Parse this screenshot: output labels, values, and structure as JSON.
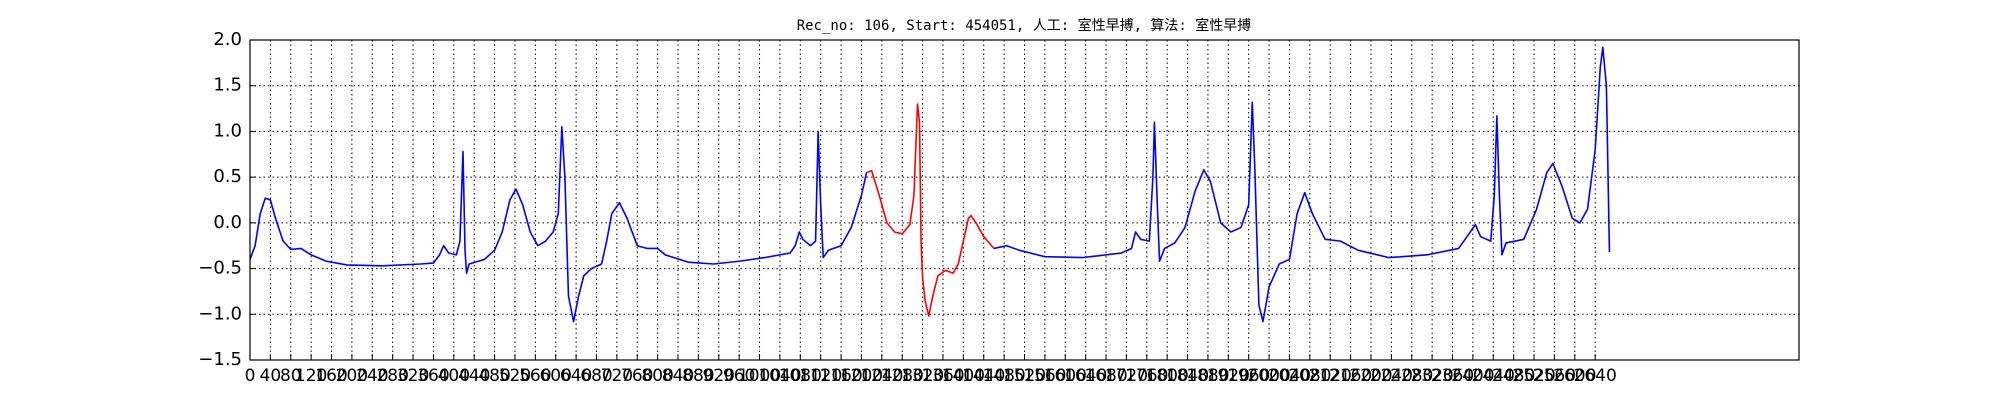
{
  "chart_data": {
    "type": "line",
    "title": "Rec_no: 106, Start: 454051, 人工: 室性早搏, 算法: 室性早搏",
    "xlim": [
      0,
      3040
    ],
    "xticks": [
      0,
      40,
      80,
      120,
      160,
      200,
      240,
      280,
      320,
      360,
      400,
      440,
      480,
      520,
      560,
      600,
      640,
      680,
      720,
      760,
      800,
      840,
      880,
      920,
      960,
      1000,
      1040,
      1080,
      1120,
      1160,
      1200,
      1240,
      1280,
      1320,
      1360,
      1400,
      1440,
      1480,
      1520,
      1560,
      1600,
      1640,
      1680,
      1720,
      1760,
      1800,
      1840,
      1880,
      1920,
      1960,
      2000,
      2040,
      2080,
      2120,
      2160,
      2200,
      2240,
      2280,
      2320,
      2360,
      2400,
      2440,
      2480,
      2520,
      2560,
      2600,
      2640
    ],
    "ylim": [
      -1.5,
      2.0
    ],
    "yticks": [
      {
        "value": -1.5,
        "label": "−1.5"
      },
      {
        "value": -1.0,
        "label": "−1.0"
      },
      {
        "value": -0.5,
        "label": "−0.5"
      },
      {
        "value": 0,
        "label": "0.0"
      },
      0.5,
      {
        "value": 1.0,
        "label": "1.0"
      },
      1.5,
      {
        "value": 2.0,
        "label": "2.0"
      }
    ],
    "grid": true,
    "series": [
      {
        "color": "#0000ff",
        "x": [
          0,
          10,
          20,
          30,
          40,
          50,
          65,
          80,
          100,
          120,
          150,
          190,
          260,
          335,
          360,
          372,
          380,
          390,
          405,
          412,
          418,
          422,
          425,
          430,
          460,
          480,
          495,
          510,
          522,
          535,
          550,
          565,
          580,
          595,
          605,
          612,
          618,
          625,
          635,
          645,
          655,
          670,
          690,
          700,
          710,
          725,
          740,
          760,
          780,
          800,
          815,
          860,
          910,
          960,
          1010,
          1060,
          1070,
          1078,
          1085,
          1100,
          1110,
          1115,
          1120,
          1125,
          1135,
          1160,
          1180,
          1200,
          1210
        ],
        "values": [
          -0.4,
          -0.25,
          0.1,
          0.27,
          0.25,
          0.05,
          -0.2,
          -0.29,
          -0.28,
          -0.35,
          -0.42,
          -0.46,
          -0.47,
          -0.45,
          -0.44,
          -0.35,
          -0.25,
          -0.33,
          -0.35,
          -0.2,
          0.78,
          -0.3,
          -0.55,
          -0.45,
          -0.4,
          -0.3,
          -0.1,
          0.25,
          0.37,
          0.2,
          -0.1,
          -0.25,
          -0.2,
          -0.1,
          0.1,
          1.05,
          0.5,
          -0.8,
          -1.08,
          -0.8,
          -0.58,
          -0.5,
          -0.45,
          -0.2,
          0.1,
          0.22,
          0.05,
          -0.25,
          -0.28,
          -0.28,
          -0.35,
          -0.43,
          -0.45,
          -0.42,
          -0.38,
          -0.33,
          -0.25,
          -0.1,
          -0.18,
          -0.25,
          -0.2,
          1.0,
          0.2,
          -0.38,
          -0.3,
          -0.25,
          -0.05,
          0.3,
          0.55
        ]
      },
      {
        "color": "#ff0000",
        "x": [
          1210,
          1220,
          1235,
          1250,
          1265,
          1280,
          1295,
          1303,
          1310,
          1314,
          1317,
          1320,
          1325,
          1332,
          1340,
          1350,
          1365,
          1380,
          1390,
          1400,
          1410,
          1415,
          1425,
          1440,
          1460
        ],
        "values": [
          0.55,
          0.57,
          0.3,
          0.0,
          -0.1,
          -0.12,
          -0.02,
          0.3,
          1.3,
          1.1,
          -0.2,
          -0.6,
          -0.85,
          -1.02,
          -0.8,
          -0.58,
          -0.52,
          -0.55,
          -0.45,
          -0.2,
          0.05,
          0.08,
          0.0,
          -0.15,
          -0.28
        ]
      },
      {
        "color": "#0000ff",
        "x": [
          1460,
          1485,
          1510,
          1560,
          1635,
          1710,
          1730,
          1738,
          1748,
          1765,
          1772,
          1775,
          1780,
          1785,
          1795,
          1815,
          1835,
          1855,
          1872,
          1885,
          1905,
          1925,
          1945,
          1960,
          1967,
          1972,
          1980,
          1988,
          2000,
          2020,
          2040,
          2055,
          2070,
          2085,
          2110,
          2140,
          2175,
          2235,
          2310,
          2372,
          2405,
          2415,
          2435,
          2442,
          2447,
          2452,
          2457,
          2465,
          2500,
          2525,
          2545,
          2557,
          2575,
          2595,
          2610,
          2625,
          2640,
          2650,
          2655,
          2662,
          2668
        ],
        "values": [
          -0.28,
          -0.25,
          -0.3,
          -0.37,
          -0.38,
          -0.33,
          -0.28,
          -0.1,
          -0.18,
          -0.2,
          0.5,
          1.1,
          0.3,
          -0.42,
          -0.28,
          -0.22,
          -0.05,
          0.35,
          0.58,
          0.45,
          0.0,
          -0.1,
          -0.05,
          0.2,
          1.32,
          0.6,
          -0.9,
          -1.08,
          -0.7,
          -0.45,
          -0.4,
          0.1,
          0.33,
          0.1,
          -0.18,
          -0.2,
          -0.3,
          -0.38,
          -0.35,
          -0.28,
          -0.02,
          -0.15,
          -0.2,
          0.3,
          1.17,
          0.3,
          -0.35,
          -0.22,
          -0.18,
          0.15,
          0.55,
          0.65,
          0.4,
          0.05,
          0.0,
          0.15,
          0.8,
          1.7,
          1.92,
          1.5,
          -0.32
        ]
      }
    ]
  }
}
